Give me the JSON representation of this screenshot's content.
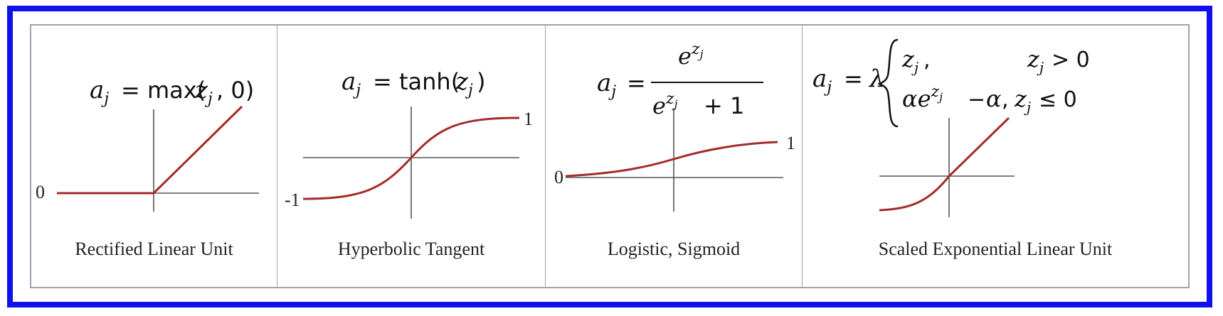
{
  "panels": [
    {
      "caption": "Rectified Linear Unit",
      "formula": "a_j = max(z_j, 0)",
      "tick_left": "0"
    },
    {
      "caption": "Hyperbolic Tangent",
      "formula": "a_j = tanh(z_j)",
      "tick_top": "1",
      "tick_left": "-1"
    },
    {
      "caption": "Logistic, Sigmoid",
      "formula": "a_j = e^{z_j} / (e^{z_j} + 1)",
      "tick_top": "1",
      "tick_left": "0"
    },
    {
      "caption": "Scaled Exponential Linear Unit",
      "formula": "a_j = λ { z_j, z_j > 0 ; αe^{z_j} − α, z_j ≤ 0 }",
      "tick_left": ""
    }
  ],
  "colors": {
    "frame_border": "#1010ee",
    "panel_border": "#9aa3b3",
    "curve": "#a52a2a",
    "axis": "#555555"
  }
}
